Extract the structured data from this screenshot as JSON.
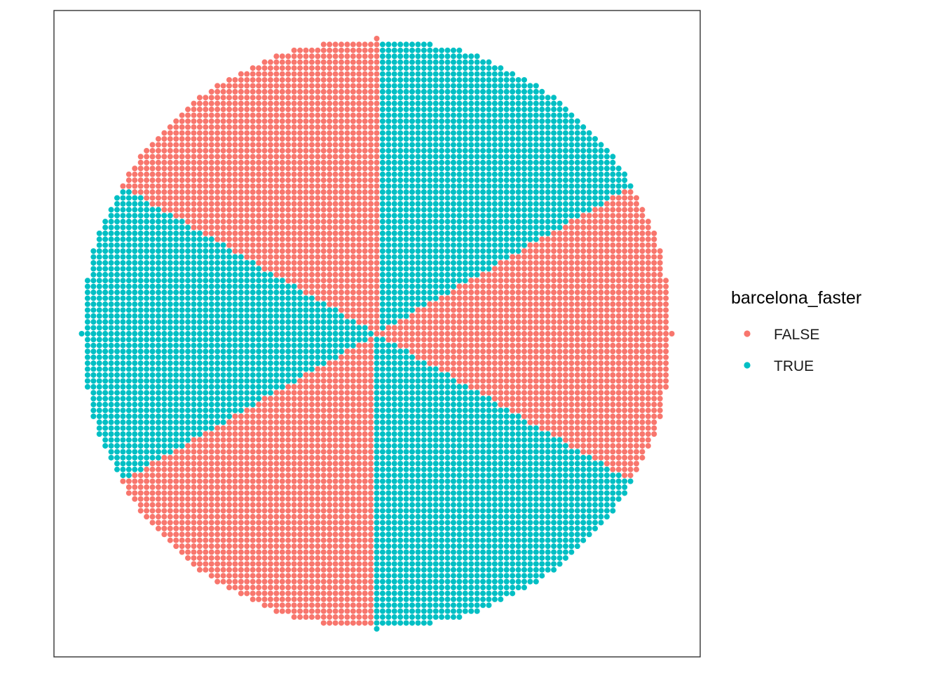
{
  "chart_data": {
    "type": "scatter",
    "title": "",
    "xlabel": "",
    "ylabel": "",
    "xlim": [
      -1,
      1
    ],
    "ylim": [
      -1,
      1
    ],
    "grid": false,
    "axes_ticks": false,
    "panel_border": true,
    "description_of_points": "Regular grid of points inside the unit disc, step 0.02 in x and y; color group alternates by angular sector of 60 degrees around the origin.",
    "grid_step": 0.02,
    "disc_radius": 1.0,
    "sector_width_deg": 60,
    "sector_offset_deg": 30,
    "series": [
      {
        "name": "FALSE",
        "color": "#F8766D",
        "sectors_deg": [
          [
            -30,
            30
          ],
          [
            90,
            150
          ],
          [
            210,
            270
          ]
        ]
      },
      {
        "name": "TRUE",
        "color": "#00BFC4",
        "sectors_deg": [
          [
            30,
            90
          ],
          [
            150,
            210
          ],
          [
            270,
            330
          ]
        ]
      }
    ],
    "legend": {
      "title": "barcelona_faster",
      "placement": "right",
      "entries": [
        {
          "label": "FALSE",
          "color": "#F8766D"
        },
        {
          "label": "TRUE",
          "color": "#00BFC4"
        }
      ]
    }
  }
}
